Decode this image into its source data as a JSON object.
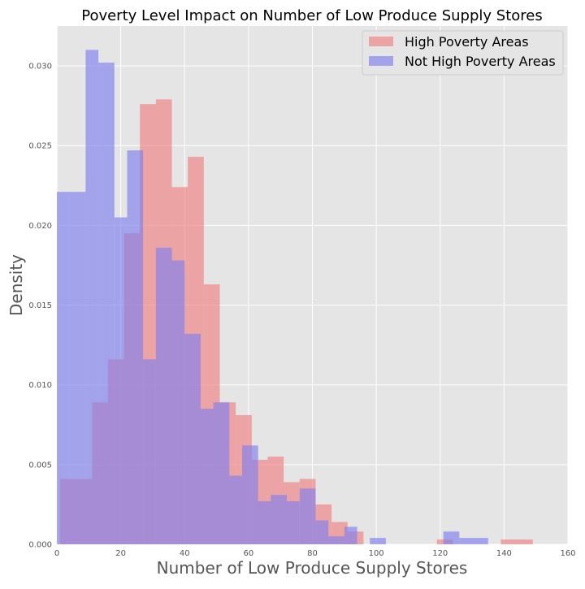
{
  "chart_data": {
    "type": "histogram",
    "title": "Poverty Level Impact on Number of Low Produce Supply Stores",
    "xlabel": "Number of Low Produce Supply Stores",
    "ylabel": "Density",
    "xlim": [
      0,
      160
    ],
    "ylim": [
      0,
      0.0325
    ],
    "xticks": [
      0,
      20,
      40,
      60,
      80,
      100,
      120,
      140,
      160
    ],
    "xtick_labels": [
      "0",
      "20",
      "40",
      "60",
      "80",
      "100",
      "120",
      "140",
      "160"
    ],
    "yticks": [
      0,
      0.005,
      0.01,
      0.015,
      0.02,
      0.025,
      0.03
    ],
    "ytick_labels": [
      "0.000",
      "0.005",
      "0.010",
      "0.015",
      "0.020",
      "0.025",
      "0.030"
    ],
    "grid": true,
    "legend_position": "top-right",
    "series": [
      {
        "name": "High Poverty Areas",
        "color": "#f08080",
        "bins": [
          [
            1,
            6,
            0.0041
          ],
          [
            6,
            11,
            0.0041
          ],
          [
            11,
            16,
            0.0089
          ],
          [
            16,
            21,
            0.0116
          ],
          [
            21,
            26,
            0.0195
          ],
          [
            26,
            31,
            0.0276
          ],
          [
            31,
            36,
            0.0279
          ],
          [
            36,
            41,
            0.0224
          ],
          [
            41,
            46,
            0.0243
          ],
          [
            46,
            51,
            0.0163
          ],
          [
            51,
            56,
            0.0089
          ],
          [
            56,
            61,
            0.0081
          ],
          [
            61,
            66,
            0.0053
          ],
          [
            66,
            71,
            0.0055
          ],
          [
            71,
            76,
            0.0039
          ],
          [
            76,
            81,
            0.0041
          ],
          [
            81,
            86,
            0.0025
          ],
          [
            86,
            91,
            0.0014
          ],
          [
            91,
            96,
            0.0008
          ],
          [
            119,
            124,
            0.0003
          ],
          [
            139,
            149,
            0.0003
          ]
        ]
      },
      {
        "name": "Not High Poverty Areas",
        "color": "#8080f0",
        "bins": [
          [
            0,
            4,
            0.0221
          ],
          [
            4,
            9,
            0.0221
          ],
          [
            9,
            13,
            0.031
          ],
          [
            13,
            18,
            0.0302
          ],
          [
            18,
            22,
            0.0205
          ],
          [
            22,
            27,
            0.0247
          ],
          [
            27,
            31,
            0.0116
          ],
          [
            31,
            36,
            0.0186
          ],
          [
            36,
            40,
            0.0178
          ],
          [
            40,
            45,
            0.0132
          ],
          [
            45,
            49,
            0.0085
          ],
          [
            49,
            54,
            0.0089
          ],
          [
            54,
            58,
            0.0043
          ],
          [
            58,
            63,
            0.0062
          ],
          [
            63,
            67,
            0.0027
          ],
          [
            67,
            72,
            0.0031
          ],
          [
            72,
            76,
            0.0027
          ],
          [
            76,
            81,
            0.0035
          ],
          [
            81,
            85,
            0.0015
          ],
          [
            85,
            90,
            0.0005
          ],
          [
            90,
            94,
            0.0011
          ],
          [
            98,
            103,
            0.0004
          ],
          [
            121,
            126,
            0.0008
          ],
          [
            126,
            135,
            0.0004
          ]
        ]
      }
    ]
  }
}
